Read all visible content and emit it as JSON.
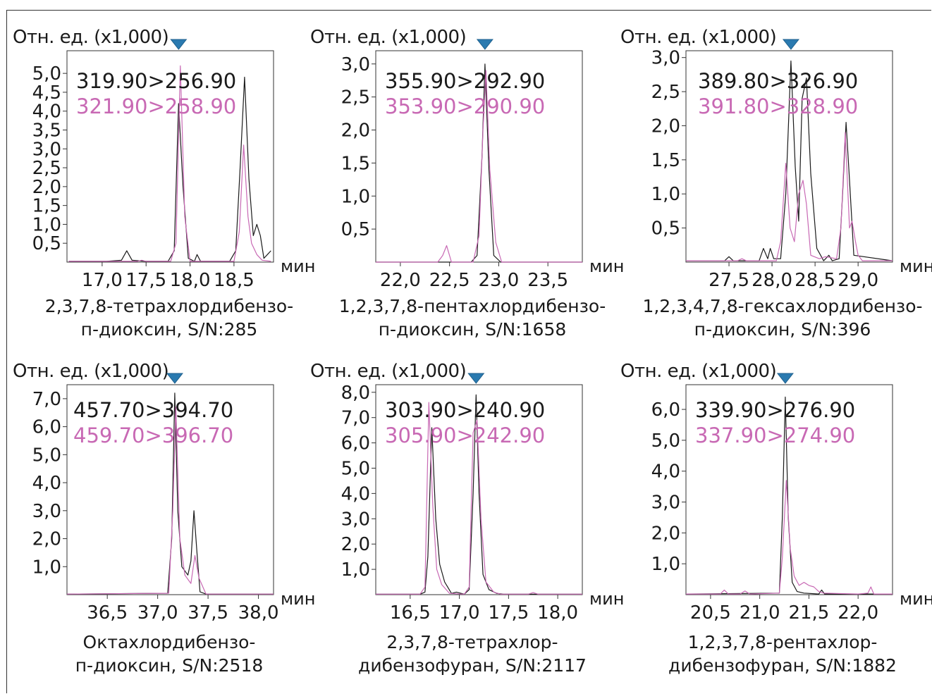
{
  "colors": {
    "trace1": "#1a1a1a",
    "trace2": "#c869b4",
    "marker": "#2a7ab0",
    "axis": "#333333"
  },
  "chart_data": [
    {
      "type": "line",
      "ylabel": "Отн. ед. (x1,000)",
      "xunit": "мин",
      "xlim": [
        16.6,
        18.95
      ],
      "ylim": [
        0,
        5.6
      ],
      "xticks": [
        17.0,
        17.5,
        18.0,
        18.5
      ],
      "xticklabels": [
        "17,0",
        "17,5",
        "18,0",
        "18,5"
      ],
      "yticks": [
        0.5,
        1.0,
        1.5,
        2.0,
        2.5,
        3.0,
        3.5,
        4.0,
        4.5,
        5.0
      ],
      "yticklabels": [
        "0,5",
        "1,0",
        "1,5",
        "2,0",
        "2,5",
        "3,0",
        "3,5",
        "4,0",
        "4,5",
        "5,0"
      ],
      "marker_x": 17.87,
      "caption": [
        "2,3,7,8-тетрахлордибензо-",
        "п-диоксин, S/N:285"
      ],
      "series": [
        {
          "name": "319.90>256.90",
          "x": [
            16.62,
            17.05,
            17.22,
            17.28,
            17.34,
            17.5,
            17.75,
            17.82,
            17.87,
            17.92,
            17.98,
            18.05,
            18.08,
            18.12,
            18.45,
            18.52,
            18.57,
            18.62,
            18.67,
            18.72,
            18.76,
            18.8,
            18.84,
            18.88,
            18.92
          ],
          "y": [
            0.02,
            0.02,
            0.05,
            0.3,
            0.05,
            0.02,
            0.02,
            0.3,
            4.2,
            2.0,
            0.1,
            0.02,
            0.2,
            0.02,
            0.02,
            0.3,
            2.5,
            4.9,
            2.2,
            0.7,
            1.0,
            0.7,
            0.1,
            0.2,
            0.3
          ]
        },
        {
          "name": "321.90>258.90",
          "x": [
            16.62,
            17.4,
            17.45,
            17.5,
            17.78,
            17.84,
            17.89,
            17.94,
            18.0,
            18.5,
            18.56,
            18.61,
            18.66,
            18.7,
            18.76,
            18.82,
            18.92
          ],
          "y": [
            0.02,
            0.02,
            0.05,
            0.02,
            0.02,
            0.5,
            5.2,
            1.2,
            0.02,
            0.02,
            0.8,
            3.1,
            1.2,
            0.5,
            0.2,
            0.05,
            0.02
          ]
        }
      ]
    },
    {
      "type": "line",
      "ylabel": "Отн. ед. (x1,000)",
      "xunit": "мин",
      "xlim": [
        21.75,
        23.85
      ],
      "ylim": [
        0,
        3.2
      ],
      "xticks": [
        22.0,
        22.5,
        23.0,
        23.5
      ],
      "xticklabels": [
        "22,0",
        "22,5",
        "23,0",
        "23,5"
      ],
      "yticks": [
        0.5,
        1.0,
        1.5,
        2.0,
        2.5,
        3.0
      ],
      "yticklabels": [
        "0,5",
        "1,0",
        "1,5",
        "2,0",
        "2,5",
        "3,0"
      ],
      "marker_x": 22.86,
      "caption": [
        "1,2,3,7,8-пентахлордибензо-",
        "п-диоксин, S/N:1658"
      ],
      "series": [
        {
          "name": "355.90>292.90",
          "x": [
            21.75,
            22.72,
            22.78,
            22.83,
            22.86,
            22.9,
            22.95,
            23.02,
            23.85
          ],
          "y": [
            0.0,
            0.0,
            0.1,
            1.6,
            3.0,
            1.4,
            0.1,
            0.0,
            0.0
          ]
        },
        {
          "name": "353.90>290.90",
          "x": [
            21.75,
            22.38,
            22.43,
            22.47,
            22.52,
            22.74,
            22.8,
            22.84,
            22.87,
            22.91,
            22.97,
            23.03,
            23.85
          ],
          "y": [
            0.0,
            0.0,
            0.1,
            0.25,
            0.0,
            0.0,
            0.4,
            2.0,
            2.9,
            1.4,
            0.3,
            0.0,
            0.0
          ]
        }
      ]
    },
    {
      "type": "line",
      "ylabel": "Отн. ед. (x1,000)",
      "xunit": "мин",
      "xlim": [
        27.0,
        29.4
      ],
      "ylim": [
        0,
        3.1
      ],
      "xticks": [
        27.5,
        28.0,
        28.5,
        29.0
      ],
      "xticklabels": [
        "27,5",
        "28,0",
        "28,5",
        "29,0"
      ],
      "yticks": [
        0.5,
        1.0,
        1.5,
        2.0,
        2.5,
        3.0
      ],
      "yticklabels": [
        "0,5",
        "1,0",
        "1,5",
        "2,0",
        "2,5",
        "3,0"
      ],
      "marker_x": 28.22,
      "caption": [
        "1,2,3,4,7,8-гексахлордибензо-",
        "п-диоксин, S/N:396"
      ],
      "series": [
        {
          "name": "389.80>326.90",
          "x": [
            27.0,
            27.45,
            27.5,
            27.55,
            27.85,
            27.9,
            27.95,
            27.98,
            28.02,
            28.1,
            28.16,
            28.22,
            28.27,
            28.31,
            28.35,
            28.4,
            28.45,
            28.52,
            28.6,
            28.66,
            28.7,
            28.78,
            28.82,
            28.86,
            28.9,
            28.95,
            29.4
          ],
          "y": [
            0.02,
            0.02,
            0.08,
            0.02,
            0.02,
            0.2,
            0.05,
            0.2,
            0.05,
            0.05,
            1.0,
            2.95,
            1.4,
            0.6,
            2.4,
            2.7,
            1.3,
            0.2,
            0.02,
            0.1,
            0.02,
            0.05,
            1.0,
            2.05,
            1.2,
            0.1,
            0.02
          ]
        },
        {
          "name": "391.80>328.90",
          "x": [
            27.0,
            27.6,
            27.65,
            27.7,
            28.05,
            28.1,
            28.16,
            28.21,
            28.26,
            28.31,
            28.36,
            28.4,
            28.45,
            28.55,
            28.62,
            28.75,
            28.8,
            28.85,
            28.9,
            28.93,
            28.97,
            29.0,
            29.05,
            29.4
          ],
          "y": [
            0.02,
            0.02,
            0.05,
            0.02,
            0.02,
            0.3,
            1.45,
            0.5,
            0.3,
            1.0,
            1.2,
            0.85,
            0.1,
            0.05,
            0.08,
            0.05,
            0.5,
            1.9,
            0.5,
            0.6,
            0.3,
            0.1,
            0.02,
            0.02
          ]
        }
      ]
    },
    {
      "type": "line",
      "ylabel": "Отн. ед. (x1,000)",
      "xunit": "мин",
      "xlim": [
        36.1,
        38.15
      ],
      "ylim": [
        0,
        7.5
      ],
      "xticks": [
        36.5,
        37.0,
        37.5,
        38.0
      ],
      "xticklabels": [
        "36,5",
        "37,0",
        "37,5",
        "38,0"
      ],
      "yticks": [
        1.0,
        2.0,
        3.0,
        4.0,
        5.0,
        6.0,
        7.0
      ],
      "yticklabels": [
        "1,0",
        "2,0",
        "3,0",
        "4,0",
        "5,0",
        "6,0",
        "7,0"
      ],
      "marker_x": 37.17,
      "caption": [
        "Октахлордибензо-",
        "п-диоксин, S/N:2518"
      ],
      "series": [
        {
          "name": "457.70>394.70",
          "x": [
            36.1,
            37.1,
            37.14,
            37.17,
            37.2,
            37.24,
            37.3,
            37.33,
            37.36,
            37.39,
            37.42,
            37.48,
            38.15
          ],
          "y": [
            0.02,
            0.05,
            2.0,
            7.2,
            3.0,
            1.0,
            0.7,
            1.2,
            3.0,
            1.5,
            0.1,
            0.02,
            0.02
          ]
        },
        {
          "name": "459.70>396.70",
          "x": [
            36.1,
            37.11,
            37.15,
            37.18,
            37.22,
            37.27,
            37.33,
            37.37,
            37.41,
            37.48,
            38.15
          ],
          "y": [
            0.02,
            0.05,
            3.0,
            6.7,
            2.0,
            0.7,
            0.4,
            1.4,
            0.6,
            0.02,
            0.02
          ]
        }
      ]
    },
    {
      "type": "line",
      "ylabel": "Отн. ед. (x1,000)",
      "xunit": "мин",
      "xlim": [
        16.15,
        18.25
      ],
      "ylim": [
        0,
        8.3
      ],
      "xticks": [
        16.5,
        17.0,
        17.5,
        18.0
      ],
      "xticklabels": [
        "16,5",
        "17,0",
        "17,5",
        "18,0"
      ],
      "yticks": [
        1.0,
        2.0,
        3.0,
        4.0,
        5.0,
        6.0,
        7.0,
        8.0
      ],
      "yticklabels": [
        "1,0",
        "2,0",
        "3,0",
        "4,0",
        "5,0",
        "6,0",
        "7,0",
        "8,0"
      ],
      "marker_x": 17.17,
      "caption": [
        "2,3,7,8-тетрахлор-",
        "дибензофуран, S/N:2117"
      ],
      "series": [
        {
          "name": "303.90>240.90",
          "x": [
            16.15,
            16.6,
            16.65,
            16.68,
            16.72,
            16.76,
            16.8,
            16.85,
            16.92,
            16.97,
            17.05,
            17.1,
            17.14,
            17.17,
            17.2,
            17.24,
            17.3,
            17.38,
            17.45,
            18.25
          ],
          "y": [
            0.02,
            0.02,
            0.1,
            1.5,
            6.6,
            3.0,
            1.2,
            0.5,
            0.05,
            0.1,
            0.02,
            0.2,
            4.0,
            7.9,
            4.0,
            0.8,
            0.2,
            0.05,
            0.02,
            0.02
          ]
        },
        {
          "name": "305.90>242.90",
          "x": [
            16.15,
            16.6,
            16.65,
            16.69,
            16.73,
            16.77,
            16.82,
            16.9,
            17.05,
            17.1,
            17.14,
            17.18,
            17.22,
            17.27,
            17.35,
            17.42,
            17.7,
            17.75,
            17.8,
            18.25
          ],
          "y": [
            0.02,
            0.02,
            0.3,
            7.6,
            3.5,
            1.0,
            0.4,
            0.05,
            0.02,
            0.3,
            6.4,
            6.9,
            3.0,
            0.5,
            0.1,
            0.02,
            0.02,
            0.08,
            0.02,
            0.02
          ]
        }
      ]
    },
    {
      "type": "line",
      "ylabel": "Отн. ед. (x1,000)",
      "xunit": "мин",
      "xlim": [
        20.25,
        22.35
      ],
      "ylim": [
        0,
        6.8
      ],
      "xticks": [
        20.5,
        21.0,
        21.5,
        22.0
      ],
      "xticklabels": [
        "20,5",
        "21,0",
        "21,5",
        "22,0"
      ],
      "yticks": [
        1.0,
        2.0,
        3.0,
        4.0,
        5.0,
        6.0
      ],
      "yticklabels": [
        "1,0",
        "2,0",
        "3,0",
        "4,0",
        "5,0",
        "6,0"
      ],
      "marker_x": 21.26,
      "caption": [
        "1,2,3,7,8-рентахлор-",
        "дибензофуран, S/N:1882"
      ],
      "series": [
        {
          "name": "339.90>276.90",
          "x": [
            20.25,
            21.2,
            21.23,
            21.26,
            21.29,
            21.33,
            21.38,
            21.45,
            21.6,
            21.63,
            21.66,
            22.35
          ],
          "y": [
            0.02,
            0.05,
            2.5,
            6.4,
            2.5,
            0.4,
            0.1,
            0.05,
            0.02,
            0.15,
            0.02,
            0.02
          ]
        },
        {
          "name": "337.90>274.90",
          "x": [
            20.25,
            20.6,
            20.64,
            20.68,
            20.8,
            20.85,
            20.9,
            21.2,
            21.23,
            21.27,
            21.31,
            21.35,
            21.4,
            21.45,
            21.5,
            21.55,
            21.6,
            21.65,
            22.0,
            22.1,
            22.13,
            22.16,
            22.35
          ],
          "y": [
            0.02,
            0.02,
            0.15,
            0.02,
            0.02,
            0.12,
            0.02,
            0.05,
            1.2,
            3.7,
            1.5,
            0.6,
            0.3,
            0.4,
            0.3,
            0.25,
            0.1,
            0.05,
            0.02,
            0.05,
            0.25,
            0.02,
            0.02
          ]
        }
      ]
    }
  ]
}
